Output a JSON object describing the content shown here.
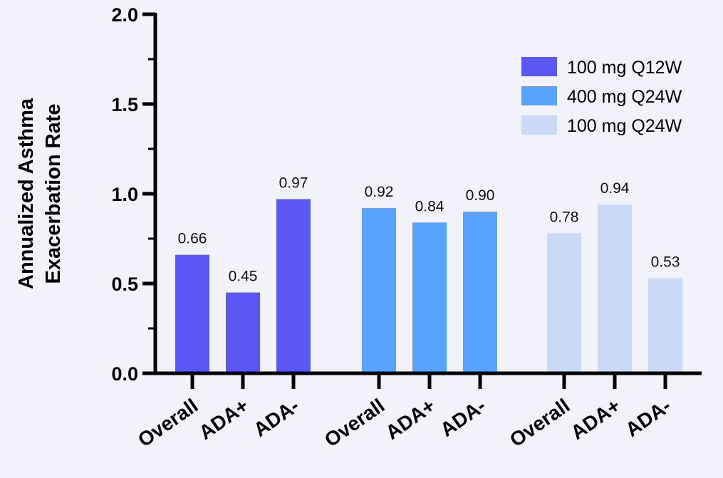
{
  "chart_data": {
    "type": "bar",
    "ylabel_lines": [
      "Annualized Asthma",
      "Exacerbation Rate"
    ],
    "ylim": [
      0,
      2.0
    ],
    "yticks": [
      "0.0",
      "0.5",
      "1.0",
      "1.5",
      "2.0"
    ],
    "legend_position": "top-right",
    "grid": false,
    "groups": [
      {
        "series": "100 mg Q12W",
        "color": "#5b57f5",
        "categories": [
          "Overall",
          "ADA+",
          "ADA-"
        ],
        "values": [
          0.66,
          0.45,
          0.97
        ],
        "labels": [
          "0.66",
          "0.45",
          "0.97"
        ]
      },
      {
        "series": "400 mg Q24W",
        "color": "#58a3fb",
        "categories": [
          "Overall",
          "ADA+",
          "ADA-"
        ],
        "values": [
          0.92,
          0.84,
          0.9
        ],
        "labels": [
          "0.92",
          "0.84",
          "0.90"
        ]
      },
      {
        "series": "100 mg Q24W",
        "color": "#cad9f6",
        "categories": [
          "Overall",
          "ADA+",
          "ADA-"
        ],
        "values": [
          0.78,
          0.94,
          0.53
        ],
        "labels": [
          "0.78",
          "0.94",
          "0.53"
        ]
      }
    ]
  }
}
